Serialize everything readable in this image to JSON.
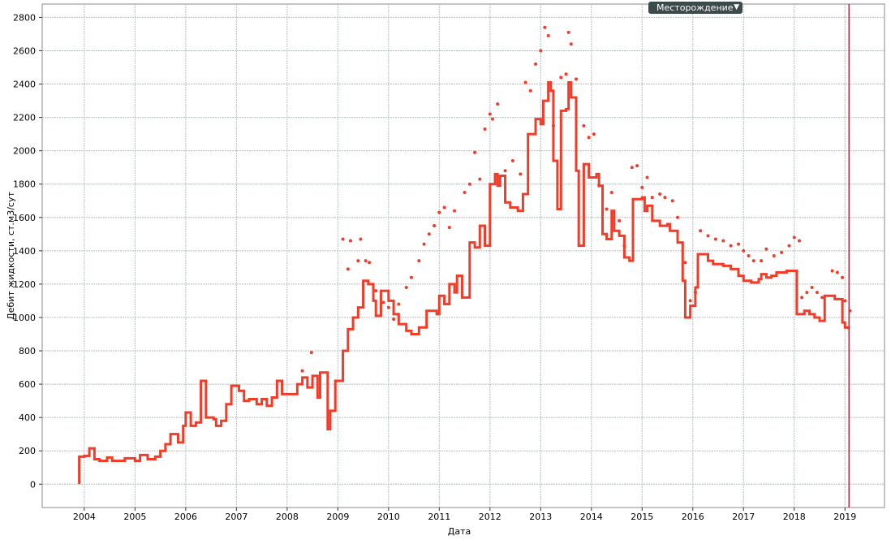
{
  "selector": "Месторождение",
  "chart_data": {
    "type": "line",
    "xlabel": "Дата",
    "ylabel": "Дебит жидкости, ст.м3/сут",
    "xlim": [
      2003.17,
      2019.78
    ],
    "ylim": [
      -140,
      2880
    ],
    "xticks": [
      2004,
      2005,
      2006,
      2007,
      2008,
      2009,
      2010,
      2011,
      2012,
      2013,
      2014,
      2015,
      2016,
      2017,
      2018,
      2019
    ],
    "yticks": [
      0,
      200,
      400,
      600,
      800,
      1000,
      1200,
      1400,
      1600,
      1800,
      2000,
      2200,
      2400,
      2600,
      2800
    ],
    "grid": true,
    "vline": {
      "x": 2019.08,
      "color": "#c8283c"
    },
    "series": [
      {
        "type": "step",
        "color": "#f03c28",
        "x": [
          2003.9,
          2003.9,
          2004.0,
          2004.1,
          2004.2,
          2004.3,
          2004.45,
          2004.55,
          2004.8,
          2005.0,
          2005.1,
          2005.25,
          2005.4,
          2005.5,
          2005.6,
          2005.7,
          2005.85,
          2005.95,
          2006.0,
          2006.1,
          2006.2,
          2006.3,
          2006.4,
          2006.55,
          2006.6,
          2006.7,
          2006.8,
          2006.9,
          2007.05,
          2007.15,
          2007.25,
          2007.4,
          2007.5,
          2007.6,
          2007.7,
          2007.8,
          2007.9,
          2008.05,
          2008.2,
          2008.3,
          2008.4,
          2008.5,
          2008.6,
          2008.65,
          2008.8,
          2008.85,
          2008.95,
          2009.1,
          2009.2,
          2009.3,
          2009.4,
          2009.5,
          2009.6,
          2009.7,
          2009.75,
          2009.85,
          2010.0,
          2010.1,
          2010.2,
          2010.35,
          2010.45,
          2010.6,
          2010.75,
          2010.95,
          2011.0,
          2011.1,
          2011.2,
          2011.3,
          2011.35,
          2011.45,
          2011.6,
          2011.7,
          2011.8,
          2011.9,
          2012.0,
          2012.1,
          2012.15,
          2012.2,
          2012.3,
          2012.4,
          2012.55,
          2012.65,
          2012.75,
          2012.9,
          2013.0,
          2013.05,
          2013.15,
          2013.2,
          2013.25,
          2013.33,
          2013.4,
          2013.5,
          2013.55,
          2013.6,
          2013.7,
          2013.75,
          2013.85,
          2013.95,
          2014.1,
          2014.15,
          2014.22,
          2014.3,
          2014.4,
          2014.45,
          2014.55,
          2014.65,
          2014.75,
          2014.82,
          2015.0,
          2015.05,
          2015.1,
          2015.2,
          2015.35,
          2015.5,
          2015.55,
          2015.7,
          2015.8,
          2015.85,
          2015.95,
          2016.05,
          2016.1,
          2016.3,
          2016.4,
          2016.6,
          2016.75,
          2016.9,
          2017.0,
          2017.15,
          2017.3,
          2017.35,
          2017.45,
          2017.55,
          2017.65,
          2017.85,
          2018.05,
          2018.2,
          2018.3,
          2018.4,
          2018.5,
          2018.6,
          2018.8,
          2018.95,
          2019.0,
          2019.07
        ],
        "values": [
          0,
          165,
          170,
          215,
          150,
          140,
          160,
          140,
          155,
          140,
          175,
          150,
          165,
          200,
          240,
          300,
          250,
          350,
          430,
          350,
          370,
          620,
          400,
          390,
          350,
          380,
          480,
          590,
          560,
          500,
          510,
          480,
          510,
          470,
          520,
          620,
          540,
          540,
          600,
          640,
          580,
          650,
          520,
          670,
          330,
          440,
          620,
          800,
          930,
          1000,
          1060,
          1220,
          1200,
          1100,
          1010,
          1160,
          1100,
          1020,
          960,
          920,
          900,
          940,
          1040,
          1020,
          1130,
          1080,
          1200,
          1150,
          1250,
          1120,
          1450,
          1420,
          1550,
          1430,
          1800,
          1860,
          1790,
          1850,
          1690,
          1660,
          1640,
          1740,
          2100,
          2190,
          2160,
          2300,
          2410,
          2360,
          1940,
          1650,
          2240,
          2250,
          2410,
          2320,
          1880,
          1430,
          1920,
          1840,
          1860,
          1790,
          1500,
          1470,
          1640,
          1520,
          1490,
          1360,
          1340,
          1710,
          1720,
          1640,
          1670,
          1580,
          1550,
          1560,
          1520,
          1450,
          1220,
          1000,
          1070,
          1180,
          1380,
          1340,
          1320,
          1310,
          1290,
          1250,
          1220,
          1210,
          1230,
          1260,
          1240,
          1250,
          1270,
          1280,
          1020,
          1040,
          1020,
          1000,
          980,
          1130,
          1110,
          970,
          940,
          930
        ]
      },
      {
        "type": "scatter",
        "color": "#f03c28",
        "x": [
          2008.3,
          2008.48,
          2009.1,
          2009.2,
          2009.25,
          2009.4,
          2009.45,
          2009.55,
          2009.62,
          2009.75,
          2009.9,
          2010.0,
          2010.1,
          2010.2,
          2010.35,
          2010.45,
          2010.6,
          2010.7,
          2010.8,
          2010.9,
          2011.0,
          2011.1,
          2011.2,
          2011.3,
          2011.5,
          2011.6,
          2011.7,
          2011.8,
          2011.9,
          2012.0,
          2012.05,
          2012.15,
          2012.3,
          2012.45,
          2012.6,
          2012.7,
          2012.8,
          2012.9,
          2013.0,
          2013.08,
          2013.15,
          2013.25,
          2013.4,
          2013.5,
          2013.55,
          2013.6,
          2013.7,
          2013.85,
          2013.95,
          2014.05,
          2014.15,
          2014.3,
          2014.4,
          2014.55,
          2014.65,
          2014.8,
          2014.9,
          2015.0,
          2015.1,
          2015.2,
          2015.35,
          2015.45,
          2015.6,
          2015.7,
          2015.85,
          2015.95,
          2016.05,
          2016.15,
          2016.3,
          2016.45,
          2016.6,
          2016.75,
          2016.9,
          2017.0,
          2017.1,
          2017.2,
          2017.35,
          2017.45,
          2017.6,
          2017.75,
          2017.9,
          2018.0,
          2018.1,
          2018.15,
          2018.25,
          2018.35,
          2018.45,
          2018.55,
          2018.75,
          2018.85,
          2018.95,
          2019.0,
          2019.1
        ],
        "values": [
          680,
          790,
          1470,
          1290,
          1460,
          1340,
          1470,
          1340,
          1330,
          1160,
          1090,
          1060,
          990,
          1080,
          1180,
          1240,
          1340,
          1440,
          1500,
          1550,
          1630,
          1660,
          1540,
          1640,
          1750,
          1800,
          1990,
          1830,
          2130,
          2220,
          2190,
          2280,
          1880,
          1940,
          1860,
          2410,
          2360,
          2520,
          2600,
          2740,
          2690,
          2150,
          2440,
          2460,
          2710,
          2640,
          2430,
          2150,
          2080,
          2100,
          1790,
          1650,
          1750,
          1580,
          1430,
          1900,
          1910,
          1780,
          1840,
          1720,
          1740,
          1720,
          1700,
          1600,
          1330,
          1100,
          1150,
          1520,
          1490,
          1470,
          1460,
          1430,
          1440,
          1400,
          1370,
          1340,
          1340,
          1410,
          1370,
          1390,
          1430,
          1480,
          1460,
          1120,
          1150,
          1180,
          1150,
          1120,
          1280,
          1270,
          1240,
          1100,
          1040
        ]
      }
    ]
  }
}
